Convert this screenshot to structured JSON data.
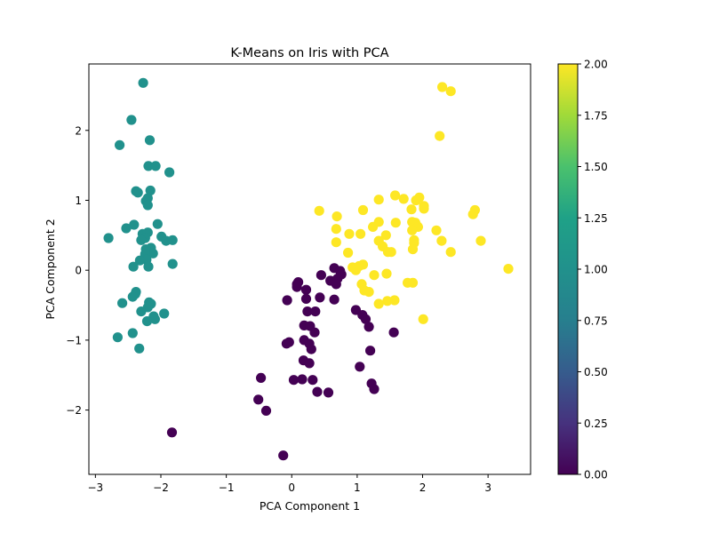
{
  "chart_data": {
    "type": "scatter",
    "title": "K-Means on Iris with PCA",
    "xlabel": "PCA Component 1",
    "ylabel": "PCA Component 2",
    "xlim": [
      -3.1,
      3.65
    ],
    "ylim": [
      -2.92,
      2.95
    ],
    "xticks": [
      -3,
      -2,
      -1,
      0,
      1,
      2,
      3
    ],
    "yticks": [
      -2,
      -1,
      0,
      1,
      2
    ],
    "grid": false,
    "colorbar": {
      "colormap": "viridis",
      "range": [
        0,
        2
      ],
      "ticks": [
        "0.00",
        "0.25",
        "0.50",
        "0.75",
        "1.00",
        "1.25",
        "1.50",
        "1.75",
        "2.00"
      ]
    },
    "series": [
      {
        "cluster": 1,
        "color": "#21918c",
        "points": [
          [
            -2.27,
            2.68
          ],
          [
            -2.45,
            2.15
          ],
          [
            -2.63,
            1.79
          ],
          [
            -2.17,
            1.86
          ],
          [
            -2.19,
            1.49
          ],
          [
            -2.08,
            1.49
          ],
          [
            -1.87,
            1.4
          ],
          [
            -2.16,
            1.14
          ],
          [
            -2.38,
            1.13
          ],
          [
            -2.35,
            1.11
          ],
          [
            -2.2,
            1.03
          ],
          [
            -2.23,
            0.99
          ],
          [
            -2.2,
            0.93
          ],
          [
            -2.05,
            0.66
          ],
          [
            -2.41,
            0.65
          ],
          [
            -2.53,
            0.6
          ],
          [
            -2.28,
            0.52
          ],
          [
            -2.2,
            0.54
          ],
          [
            -2.24,
            0.46
          ],
          [
            -2.8,
            0.46
          ],
          [
            -1.99,
            0.48
          ],
          [
            -1.92,
            0.42
          ],
          [
            -1.82,
            0.43
          ],
          [
            -2.3,
            0.43
          ],
          [
            -2.15,
            0.32
          ],
          [
            -2.23,
            0.3
          ],
          [
            -2.12,
            0.24
          ],
          [
            -2.24,
            0.23
          ],
          [
            -2.22,
            0.15
          ],
          [
            -2.32,
            0.14
          ],
          [
            -2.42,
            0.05
          ],
          [
            -1.82,
            0.09
          ],
          [
            -2.19,
            0.05
          ],
          [
            -2.38,
            -0.31
          ],
          [
            -2.39,
            -0.34
          ],
          [
            -2.43,
            -0.38
          ],
          [
            -2.59,
            -0.47
          ],
          [
            -2.18,
            -0.46
          ],
          [
            -2.15,
            -0.48
          ],
          [
            -2.2,
            -0.53
          ],
          [
            -2.3,
            -0.59
          ],
          [
            -1.95,
            -0.62
          ],
          [
            -2.11,
            -0.66
          ],
          [
            -2.09,
            -0.7
          ],
          [
            -2.21,
            -0.73
          ],
          [
            -2.43,
            -0.9
          ],
          [
            -2.66,
            -0.96
          ],
          [
            -2.33,
            -1.12
          ]
        ]
      },
      {
        "cluster": 0,
        "color": "#440154",
        "points": [
          [
            0.65,
            0.03
          ],
          [
            0.74,
            -0.01
          ],
          [
            0.45,
            -0.07
          ],
          [
            0.76,
            -0.06
          ],
          [
            0.7,
            -0.12
          ],
          [
            0.59,
            -0.15
          ],
          [
            0.68,
            -0.2
          ],
          [
            0.1,
            -0.17
          ],
          [
            0.08,
            -0.2
          ],
          [
            0.08,
            -0.24
          ],
          [
            0.22,
            -0.28
          ],
          [
            -0.07,
            -0.43
          ],
          [
            0.22,
            -0.41
          ],
          [
            0.43,
            -0.39
          ],
          [
            0.65,
            -0.42
          ],
          [
            0.24,
            -0.59
          ],
          [
            0.36,
            -0.59
          ],
          [
            0.98,
            -0.57
          ],
          [
            1.08,
            -0.64
          ],
          [
            1.13,
            -0.7
          ],
          [
            0.19,
            -0.79
          ],
          [
            0.28,
            -0.8
          ],
          [
            0.19,
            -1.0
          ],
          [
            0.35,
            -0.89
          ],
          [
            1.18,
            -0.81
          ],
          [
            1.56,
            -0.89
          ],
          [
            -0.04,
            -1.03
          ],
          [
            -0.08,
            -1.05
          ],
          [
            0.27,
            -1.05
          ],
          [
            0.3,
            -1.13
          ],
          [
            1.2,
            -1.15
          ],
          [
            0.18,
            -1.29
          ],
          [
            0.27,
            -1.33
          ],
          [
            1.04,
            -1.38
          ],
          [
            -0.47,
            -1.54
          ],
          [
            0.16,
            -1.56
          ],
          [
            0.32,
            -1.57
          ],
          [
            0.03,
            -1.57
          ],
          [
            1.22,
            -1.62
          ],
          [
            0.39,
            -1.74
          ],
          [
            0.56,
            -1.75
          ],
          [
            1.26,
            -1.7
          ],
          [
            -0.51,
            -1.85
          ],
          [
            -0.39,
            -2.01
          ],
          [
            -1.83,
            -2.32
          ],
          [
            -0.13,
            -2.65
          ]
        ]
      },
      {
        "cluster": 2,
        "color": "#fde725",
        "points": [
          [
            2.3,
            2.62
          ],
          [
            2.43,
            2.56
          ],
          [
            2.26,
            1.92
          ],
          [
            1.95,
            1.04
          ],
          [
            1.58,
            1.07
          ],
          [
            1.71,
            1.02
          ],
          [
            1.33,
            1.01
          ],
          [
            1.9,
            1.0
          ],
          [
            2.02,
            0.92
          ],
          [
            2.02,
            0.88
          ],
          [
            1.83,
            0.87
          ],
          [
            2.8,
            0.86
          ],
          [
            0.42,
            0.85
          ],
          [
            1.09,
            0.86
          ],
          [
            2.77,
            0.8
          ],
          [
            0.69,
            0.77
          ],
          [
            1.33,
            0.69
          ],
          [
            1.59,
            0.68
          ],
          [
            1.84,
            0.69
          ],
          [
            1.89,
            0.68
          ],
          [
            1.24,
            0.62
          ],
          [
            1.93,
            0.62
          ],
          [
            0.68,
            0.59
          ],
          [
            2.21,
            0.57
          ],
          [
            1.84,
            0.57
          ],
          [
            0.88,
            0.52
          ],
          [
            1.05,
            0.52
          ],
          [
            1.44,
            0.5
          ],
          [
            1.87,
            0.43
          ],
          [
            2.29,
            0.42
          ],
          [
            1.33,
            0.42
          ],
          [
            2.89,
            0.42
          ],
          [
            0.68,
            0.4
          ],
          [
            1.87,
            0.39
          ],
          [
            1.39,
            0.34
          ],
          [
            1.85,
            0.3
          ],
          [
            0.86,
            0.25
          ],
          [
            1.47,
            0.26
          ],
          [
            1.52,
            0.26
          ],
          [
            2.43,
            0.26
          ],
          [
            1.09,
            0.08
          ],
          [
            0.93,
            0.04
          ],
          [
            1.03,
            0.06
          ],
          [
            3.31,
            0.02
          ],
          [
            0.98,
            0.0
          ],
          [
            1.45,
            -0.05
          ],
          [
            1.26,
            -0.07
          ],
          [
            1.77,
            -0.18
          ],
          [
            1.85,
            -0.18
          ],
          [
            1.07,
            -0.2
          ],
          [
            1.11,
            -0.29
          ],
          [
            1.18,
            -0.31
          ],
          [
            1.57,
            -0.43
          ],
          [
            1.46,
            -0.44
          ],
          [
            1.33,
            -0.48
          ],
          [
            2.01,
            -0.7
          ]
        ]
      }
    ]
  }
}
